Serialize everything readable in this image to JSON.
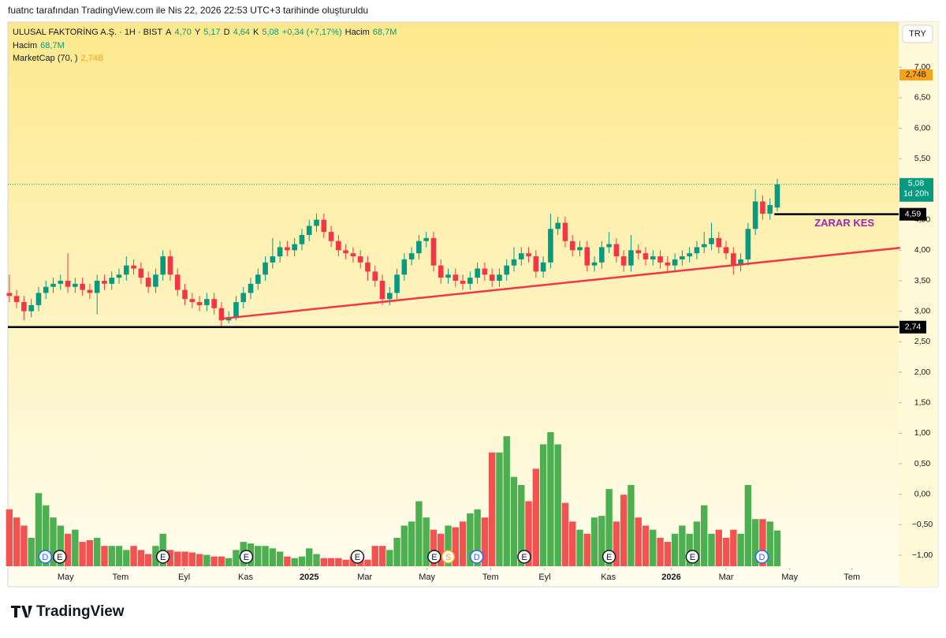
{
  "header": {
    "credit": "fuatnc tarafından TradingView.com ile Nis 22, 2026 22:53 UTC+3 tarihinde oluşturuldu",
    "legend": [
      {
        "label": "ULUSAL FAKTORİNG A.Ş. · 1H · BIST",
        "color": "#131722"
      },
      {
        "label": "A",
        "color": "#131722"
      },
      {
        "label": "4,70",
        "color": "#089981"
      },
      {
        "label": "Y",
        "color": "#131722"
      },
      {
        "label": "5,17",
        "color": "#089981"
      },
      {
        "label": "D",
        "color": "#131722"
      },
      {
        "label": "4,64",
        "color": "#089981"
      },
      {
        "label": "K",
        "color": "#131722"
      },
      {
        "label": "5,08",
        "color": "#089981"
      },
      {
        "label": "+0,34 (+7,17%)",
        "color": "#089981"
      },
      {
        "label": "Hacim",
        "color": "#131722"
      },
      {
        "label": "68,7M",
        "color": "#089981"
      }
    ],
    "volume_legend": [
      {
        "label": "Hacim",
        "color": "#131722"
      },
      {
        "label": "68,7M",
        "color": "#089981"
      }
    ],
    "marketcap_legend": [
      {
        "label": "MarketCap (70, )",
        "color": "#131722"
      },
      {
        "label": "2,74B",
        "color": "#f7a21b"
      }
    ],
    "marketcap_tag": "2,74B",
    "currency": "TRY",
    "logo": "TradingView"
  },
  "chart_data": {
    "type": "candlestick",
    "ylim": [
      -1.18,
      7.74
    ],
    "yticks": [
      {
        "value": 7,
        "label": "7,00"
      },
      {
        "value": 6.5,
        "label": "6,50"
      },
      {
        "value": 6,
        "label": "6,00"
      },
      {
        "value": 5.5,
        "label": "5,50"
      },
      {
        "value": 5,
        "label": "5,00"
      },
      {
        "value": 4.5,
        "label": "4,50"
      },
      {
        "value": 4,
        "label": "4,00"
      },
      {
        "value": 3.5,
        "label": "3,50"
      },
      {
        "value": 3,
        "label": "3,00"
      },
      {
        "value": 2.5,
        "label": "2,50"
      },
      {
        "value": 2,
        "label": "2,00"
      },
      {
        "value": 1.5,
        "label": "1,50"
      },
      {
        "value": 1,
        "label": "1,00"
      },
      {
        "value": 0.5,
        "label": "0,50"
      },
      {
        "value": 0,
        "label": "0,00"
      },
      {
        "value": -0.5,
        "label": "−0,50"
      },
      {
        "value": -1,
        "label": "−1,00"
      }
    ],
    "xlim": [
      -0.2,
      121.6
    ],
    "xticks": [
      {
        "value": 7.7,
        "label": "May"
      },
      {
        "value": 15.2,
        "label": "Tem"
      },
      {
        "value": 23.9,
        "label": "Eyl"
      },
      {
        "value": 32.3,
        "label": "Kas"
      },
      {
        "value": 41,
        "label": "2025"
      },
      {
        "value": 48.6,
        "label": "Mar"
      },
      {
        "value": 57.1,
        "label": "May"
      },
      {
        "value": 65.8,
        "label": "Tem"
      },
      {
        "value": 73.2,
        "label": "Eyl"
      },
      {
        "value": 81.9,
        "label": "Kas"
      },
      {
        "value": 90.5,
        "label": "2026"
      },
      {
        "value": 98,
        "label": "Mar"
      },
      {
        "value": 106.7,
        "label": "May"
      },
      {
        "value": 115.2,
        "label": "Tem"
      }
    ],
    "open": [
      3.3,
      3.25,
      3.15,
      3.0,
      3.1,
      3.3,
      3.4,
      3.45,
      3.5,
      3.4,
      3.45,
      3.35,
      3.3,
      3.5,
      3.45,
      3.55,
      3.6,
      3.75,
      3.7,
      3.55,
      3.4,
      3.6,
      3.9,
      3.6,
      3.35,
      3.2,
      3.15,
      3.1,
      3.2,
      3.05,
      2.85,
      2.9,
      3.15,
      3.3,
      3.45,
      3.6,
      3.8,
      3.9,
      4.05,
      4.0,
      4.1,
      4.25,
      4.4,
      4.5,
      4.3,
      4.15,
      4.0,
      3.95,
      3.9,
      3.8,
      3.65,
      3.5,
      3.2,
      3.3,
      3.6,
      3.85,
      3.95,
      4.15,
      4.2,
      3.75,
      3.55,
      3.6,
      3.5,
      3.45,
      3.55,
      3.7,
      3.6,
      3.5,
      3.6,
      3.75,
      3.85,
      3.95,
      3.9,
      3.65,
      3.8,
      4.35,
      4.45,
      4.15,
      4.0,
      4.05,
      3.75,
      3.8,
      4.05,
      4.1,
      3.9,
      3.75,
      4.0,
      3.95,
      3.85,
      3.9,
      3.8,
      3.75,
      3.85,
      3.9,
      3.95,
      4.05,
      4.1,
      4.2,
      4.05,
      3.95,
      3.75,
      3.85,
      4.35,
      4.8,
      4.6,
      4.7
    ],
    "high": [
      3.6,
      3.35,
      3.25,
      3.2,
      3.4,
      3.5,
      3.55,
      3.6,
      3.95,
      3.55,
      3.55,
      3.45,
      3.6,
      3.6,
      3.65,
      3.7,
      3.9,
      3.85,
      3.8,
      3.65,
      3.7,
      4.0,
      4.0,
      3.7,
      3.45,
      3.3,
      3.25,
      3.3,
      3.3,
      3.15,
      3.0,
      3.25,
      3.4,
      3.55,
      3.7,
      3.9,
      4.2,
      4.15,
      4.15,
      4.2,
      4.35,
      4.5,
      4.6,
      4.6,
      4.4,
      4.25,
      4.1,
      4.05,
      4.0,
      3.9,
      3.75,
      3.6,
      3.4,
      3.7,
      3.95,
      4.05,
      4.25,
      4.3,
      4.3,
      3.85,
      3.7,
      3.7,
      3.6,
      3.65,
      3.8,
      3.8,
      3.7,
      3.7,
      3.85,
      4.05,
      4.05,
      4.05,
      4.0,
      3.9,
      4.6,
      4.55,
      4.55,
      4.25,
      4.15,
      4.15,
      3.9,
      4.15,
      4.3,
      4.2,
      4.0,
      4.25,
      4.1,
      4.05,
      4.0,
      4.0,
      3.9,
      3.95,
      4.0,
      4.05,
      4.15,
      4.3,
      4.45,
      4.3,
      4.15,
      4.05,
      3.95,
      4.45,
      5.0,
      4.9,
      4.85,
      5.17
    ],
    "low": [
      3.15,
      3.05,
      2.85,
      2.9,
      3.0,
      3.2,
      3.3,
      3.35,
      3.3,
      3.3,
      3.25,
      3.2,
      2.95,
      3.35,
      3.35,
      3.45,
      3.5,
      3.6,
      3.45,
      3.3,
      3.3,
      3.5,
      3.5,
      3.25,
      3.1,
      3.05,
      3.0,
      3.0,
      2.95,
      2.75,
      2.8,
      2.85,
      3.05,
      3.2,
      3.35,
      3.5,
      3.7,
      3.8,
      3.9,
      3.9,
      4.0,
      4.15,
      4.3,
      4.2,
      4.05,
      3.9,
      3.85,
      3.8,
      3.7,
      3.5,
      3.4,
      3.1,
      3.1,
      3.2,
      3.5,
      3.75,
      3.85,
      4.05,
      3.65,
      3.45,
      3.45,
      3.4,
      3.35,
      3.35,
      3.45,
      3.5,
      3.4,
      3.4,
      3.5,
      3.65,
      3.75,
      3.8,
      3.55,
      3.55,
      3.7,
      4.25,
      4.05,
      3.9,
      3.9,
      3.65,
      3.65,
      3.7,
      3.95,
      3.8,
      3.65,
      3.65,
      3.85,
      3.75,
      3.75,
      3.7,
      3.65,
      3.65,
      3.75,
      3.8,
      3.85,
      3.95,
      4.0,
      3.95,
      3.85,
      3.6,
      3.65,
      3.75,
      4.25,
      4.5,
      4.5,
      4.64
    ],
    "close": [
      3.25,
      3.15,
      3.0,
      3.1,
      3.3,
      3.4,
      3.45,
      3.5,
      3.4,
      3.45,
      3.35,
      3.3,
      3.5,
      3.45,
      3.55,
      3.6,
      3.75,
      3.7,
      3.55,
      3.4,
      3.6,
      3.9,
      3.6,
      3.35,
      3.2,
      3.15,
      3.1,
      3.2,
      3.05,
      2.85,
      2.9,
      3.15,
      3.3,
      3.45,
      3.6,
      3.8,
      3.9,
      4.05,
      4.0,
      4.1,
      4.25,
      4.4,
      4.5,
      4.3,
      4.15,
      4.0,
      3.95,
      3.9,
      3.8,
      3.65,
      3.5,
      3.2,
      3.3,
      3.6,
      3.85,
      3.95,
      4.15,
      4.2,
      3.75,
      3.55,
      3.6,
      3.5,
      3.45,
      3.55,
      3.7,
      3.6,
      3.5,
      3.6,
      3.75,
      3.85,
      3.95,
      3.9,
      3.65,
      3.8,
      4.35,
      4.45,
      4.15,
      4.0,
      4.05,
      3.75,
      3.8,
      4.05,
      4.1,
      3.9,
      3.75,
      4.0,
      3.95,
      3.85,
      3.9,
      3.8,
      3.75,
      3.85,
      3.9,
      3.95,
      4.05,
      4.1,
      4.2,
      4.05,
      3.95,
      3.75,
      3.85,
      4.35,
      4.8,
      4.6,
      4.74,
      5.08
    ],
    "volume": [
      70,
      60,
      50,
      35,
      90,
      75,
      60,
      50,
      40,
      45,
      30,
      32,
      35,
      25,
      25,
      25,
      20,
      25,
      20,
      15,
      25,
      40,
      20,
      18,
      18,
      17,
      15,
      14,
      12,
      12,
      10,
      20,
      30,
      28,
      25,
      25,
      22,
      18,
      12,
      10,
      12,
      22,
      15,
      10,
      10,
      10,
      8,
      12,
      10,
      8,
      25,
      25,
      20,
      35,
      50,
      55,
      80,
      60,
      45,
      40,
      50,
      48,
      55,
      65,
      70,
      60,
      140,
      140,
      160,
      110,
      100,
      80,
      120,
      150,
      165,
      150,
      78,
      55,
      45,
      40,
      60,
      62,
      95,
      55,
      88,
      100,
      60,
      50,
      45,
      35,
      30,
      40,
      50,
      40,
      55,
      75,
      40,
      45,
      35,
      45,
      40,
      100,
      58,
      58,
      55,
      44
    ],
    "colors": {
      "up": "#089981",
      "down": "#f23645",
      "volume_up": "#4caf50",
      "volume_down": "#f05350"
    },
    "trendline": {
      "x": [
        29.2,
        121.8
      ],
      "y": [
        2.88,
        4.04
      ],
      "color": "#f23645"
    },
    "levels": [
      {
        "value": 2.74,
        "label": "2,74",
        "from": -0.2
      },
      {
        "value": 4.59,
        "label": "4,59",
        "from": 104.6,
        "annotation": "ZARAR KES"
      }
    ],
    "last": {
      "value": 5.08,
      "label": "5,08",
      "countdown": "1d 20h"
    },
    "events": [
      {
        "x": 4.9,
        "label": "D"
      },
      {
        "x": 6.9,
        "label": "E"
      },
      {
        "x": 21,
        "label": "E"
      },
      {
        "x": 32.4,
        "label": "E"
      },
      {
        "x": 47.6,
        "label": "E"
      },
      {
        "x": 58.1,
        "label": "E"
      },
      {
        "x": 60,
        "label": "S"
      },
      {
        "x": 63.9,
        "label": "D"
      },
      {
        "x": 70.4,
        "label": "E"
      },
      {
        "x": 82,
        "label": "E"
      },
      {
        "x": 93.4,
        "label": "E"
      },
      {
        "x": 102.9,
        "label": "D"
      }
    ]
  }
}
